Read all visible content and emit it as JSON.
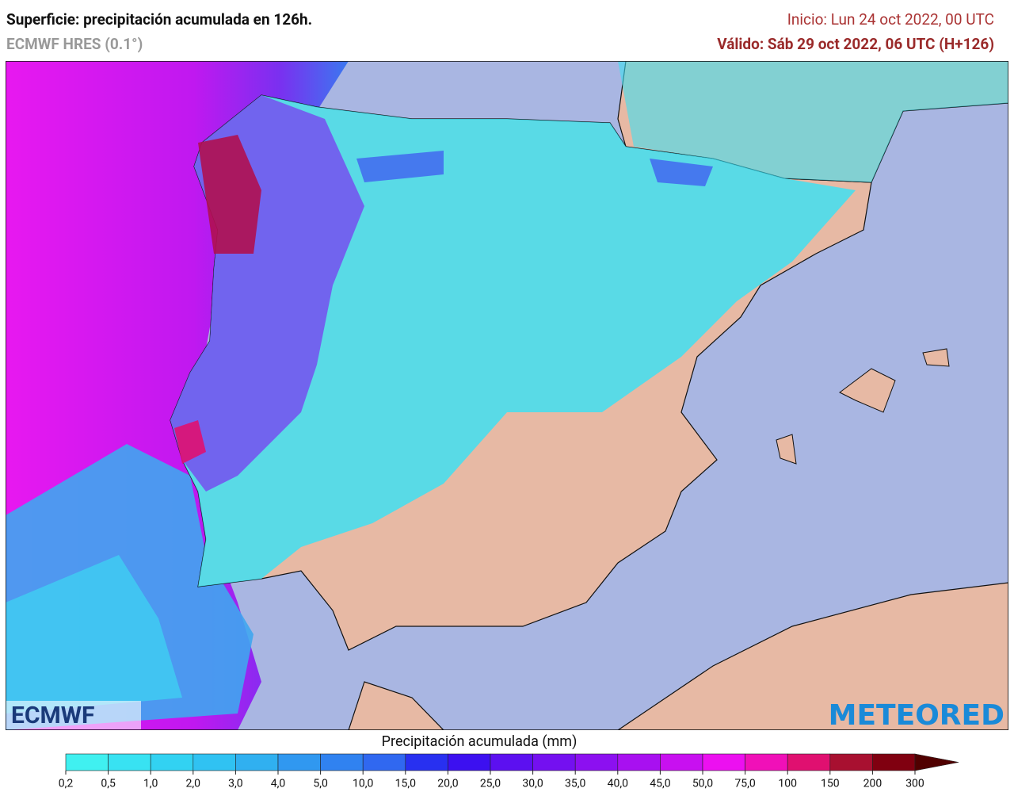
{
  "header": {
    "title": "Superficie: precipitación acumulada en 126h.",
    "model": "ECMWF HRES (0.1°)",
    "init": "Inicio: Lun 24 oct 2022, 00 UTC",
    "valid": "Válido: Sáb 29 oct 2022, 06 UTC (H+126)"
  },
  "logos": {
    "left": "ECMWF",
    "right": "METEORED"
  },
  "legend": {
    "title": "Precipitación acumulada (mm)",
    "ticks": [
      {
        "value": 0.2,
        "label": "0,2"
      },
      {
        "value": 0.5,
        "label": "0,5"
      },
      {
        "value": 1,
        "label": "1,0"
      },
      {
        "value": 2,
        "label": "2,0"
      },
      {
        "value": 3,
        "label": "3,0"
      },
      {
        "value": 4,
        "label": "4,0"
      },
      {
        "value": 5,
        "label": "5,0"
      },
      {
        "value": 10,
        "label": "10,0"
      },
      {
        "value": 15,
        "label": "15,0"
      },
      {
        "value": 20,
        "label": "20,0"
      },
      {
        "value": 25,
        "label": "25,0"
      },
      {
        "value": 30,
        "label": "30,0"
      },
      {
        "value": 35,
        "label": "35,0"
      },
      {
        "value": 40,
        "label": "40,0"
      },
      {
        "value": 45,
        "label": "45,0"
      },
      {
        "value": 50,
        "label": "50,0"
      },
      {
        "value": 75,
        "label": "75,0"
      },
      {
        "value": 100,
        "label": "100"
      },
      {
        "value": 150,
        "label": "150"
      },
      {
        "value": 200,
        "label": "200"
      },
      {
        "value": 300,
        "label": "300"
      }
    ],
    "colors": [
      "#40f0f0",
      "#38e2f2",
      "#32d2f2",
      "#30c2f2",
      "#30b0f0",
      "#3098f0",
      "#3082f0",
      "#3068f0",
      "#2830f0",
      "#3c10f0",
      "#5c10f0",
      "#7410f0",
      "#8c10f0",
      "#a810f0",
      "#c810f0",
      "#ec10f0",
      "#f010b8",
      "#e01070",
      "#a81030",
      "#800010"
    ],
    "over_color": "#500000"
  }
}
